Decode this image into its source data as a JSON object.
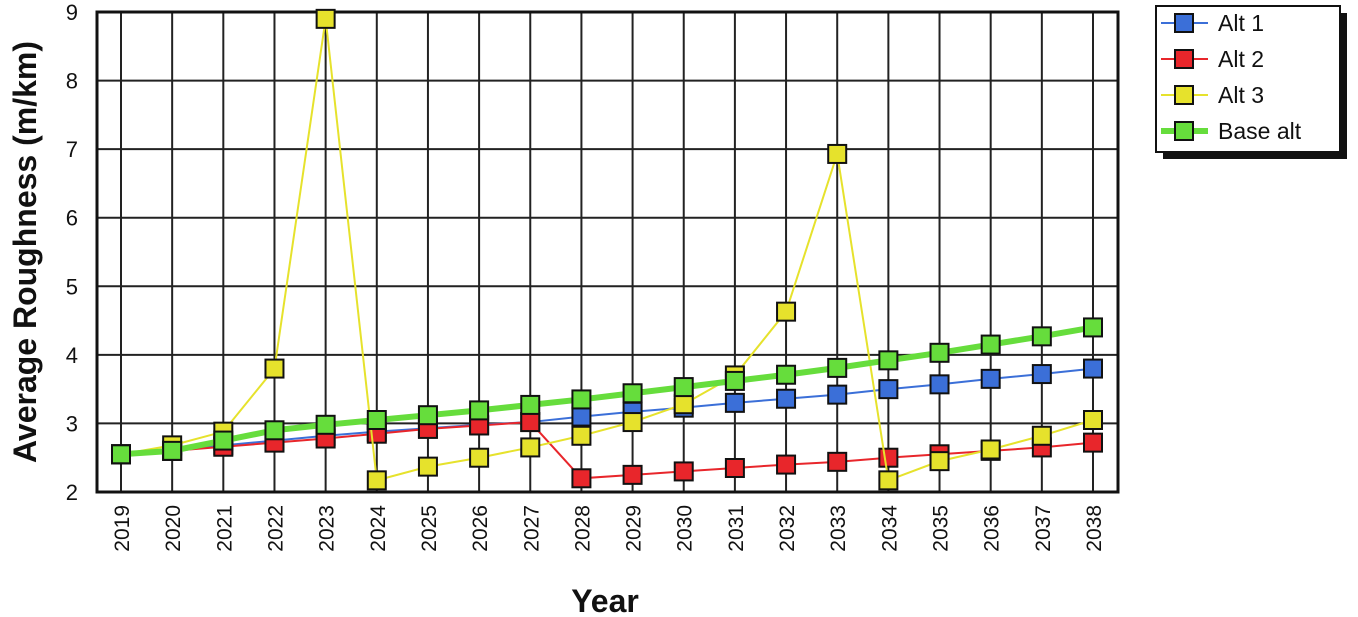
{
  "chart_data": {
    "type": "line",
    "xlabel": "Year",
    "ylabel": "Average Roughness (m/km)",
    "ylim": [
      2,
      9
    ],
    "yticks": [
      "2",
      "3",
      "4",
      "5",
      "6",
      "7",
      "8",
      "9"
    ],
    "x": [
      "2019",
      "2020",
      "2021",
      "2022",
      "2023",
      "2024",
      "2025",
      "2026",
      "2027",
      "2028",
      "2029",
      "2030",
      "2031",
      "2032",
      "2033",
      "2034",
      "2035",
      "2036",
      "2037",
      "2038"
    ],
    "grid": true,
    "legend_position": "top-right",
    "series": [
      {
        "name": "Alt 1",
        "color": "#3b6fd8",
        "values": [
          2.55,
          2.6,
          2.68,
          2.75,
          2.82,
          2.88,
          2.93,
          2.98,
          3.02,
          3.1,
          3.17,
          3.23,
          3.3,
          3.36,
          3.42,
          3.5,
          3.57,
          3.65,
          3.72,
          3.8
        ]
      },
      {
        "name": "Alt 2",
        "color": "#e8262b",
        "values": [
          2.55,
          2.6,
          2.66,
          2.72,
          2.78,
          2.85,
          2.92,
          2.97,
          3.02,
          2.2,
          2.25,
          2.3,
          2.35,
          2.4,
          2.44,
          2.5,
          2.55,
          2.6,
          2.65,
          2.72
        ]
      },
      {
        "name": "Alt 3",
        "color": "#e6e22c",
        "values": [
          2.55,
          2.68,
          2.88,
          3.8,
          8.9,
          2.17,
          2.37,
          2.5,
          2.65,
          2.82,
          3.02,
          3.28,
          3.7,
          4.63,
          6.93,
          2.17,
          2.45,
          2.62,
          2.82,
          3.05
        ]
      },
      {
        "name": "Base alt",
        "color": "#66dd3c",
        "values": [
          2.55,
          2.6,
          2.75,
          2.9,
          2.98,
          3.05,
          3.12,
          3.19,
          3.27,
          3.35,
          3.44,
          3.53,
          3.62,
          3.71,
          3.81,
          3.92,
          4.03,
          4.15,
          4.27,
          4.4
        ]
      }
    ]
  }
}
